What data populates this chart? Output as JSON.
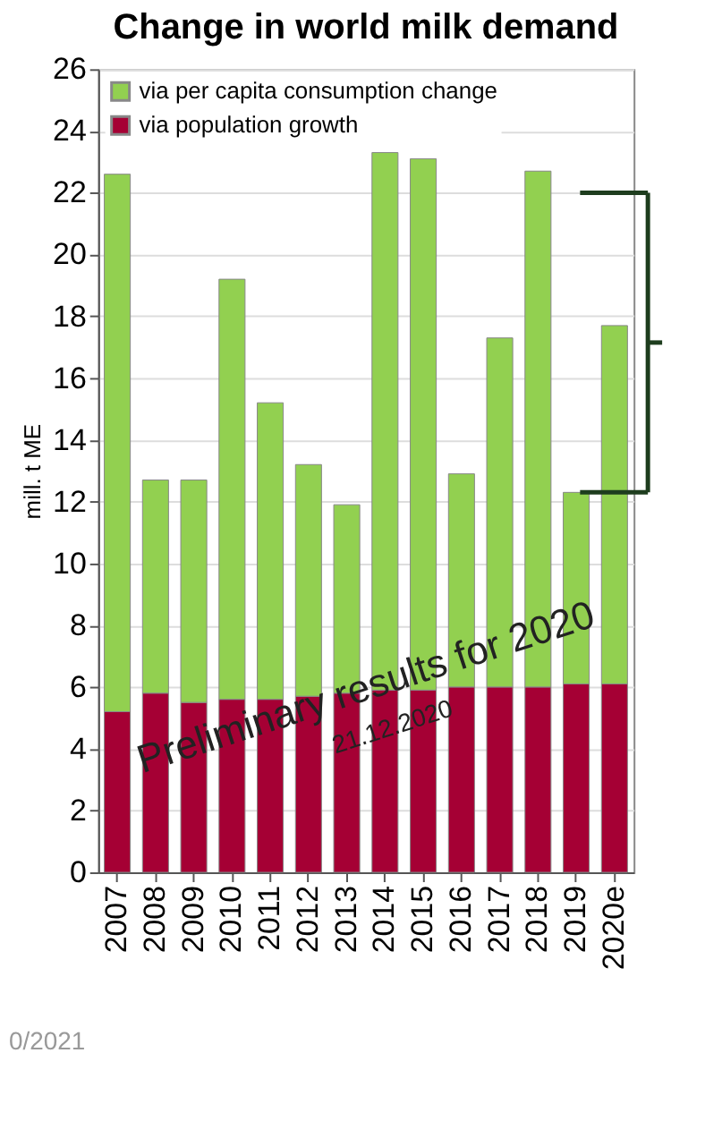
{
  "chart_data": {
    "type": "bar",
    "title": "Change in world milk demand",
    "ylabel": "mill. t ME",
    "stacked": true,
    "categories": [
      "2007",
      "2008",
      "2009",
      "2010",
      "2011",
      "2012",
      "2013",
      "2014",
      "2015",
      "2016",
      "2017",
      "2018",
      "2019",
      "2020e"
    ],
    "series": [
      {
        "name": "via population growth",
        "color": "#a50034",
        "values": [
          5.2,
          5.8,
          5.5,
          5.6,
          5.6,
          5.7,
          5.8,
          5.9,
          5.9,
          6.0,
          6.0,
          6.0,
          6.1,
          6.1
        ]
      },
      {
        "name": "via per capita consumption change",
        "color": "#92d050",
        "values": [
          17.4,
          6.9,
          7.2,
          13.6,
          9.6,
          7.5,
          6.1,
          17.4,
          17.2,
          6.9,
          11.3,
          16.7,
          6.2,
          11.6
        ]
      }
    ],
    "ylim": [
      0,
      26
    ],
    "yticks": [
      0,
      2,
      4,
      6,
      8,
      10,
      12,
      14,
      16,
      18,
      20,
      22,
      24,
      26
    ],
    "grid": "y",
    "legend": "top left",
    "ref_lines": [
      {
        "axis": "y",
        "value": 22,
        "color": "#1e3d1e"
      },
      {
        "axis": "y",
        "value": 12.3,
        "color": "#1e3d1e"
      }
    ],
    "annotations": [
      "Preliminary results for 2020",
      "21.12.2020",
      "0/2021"
    ]
  }
}
